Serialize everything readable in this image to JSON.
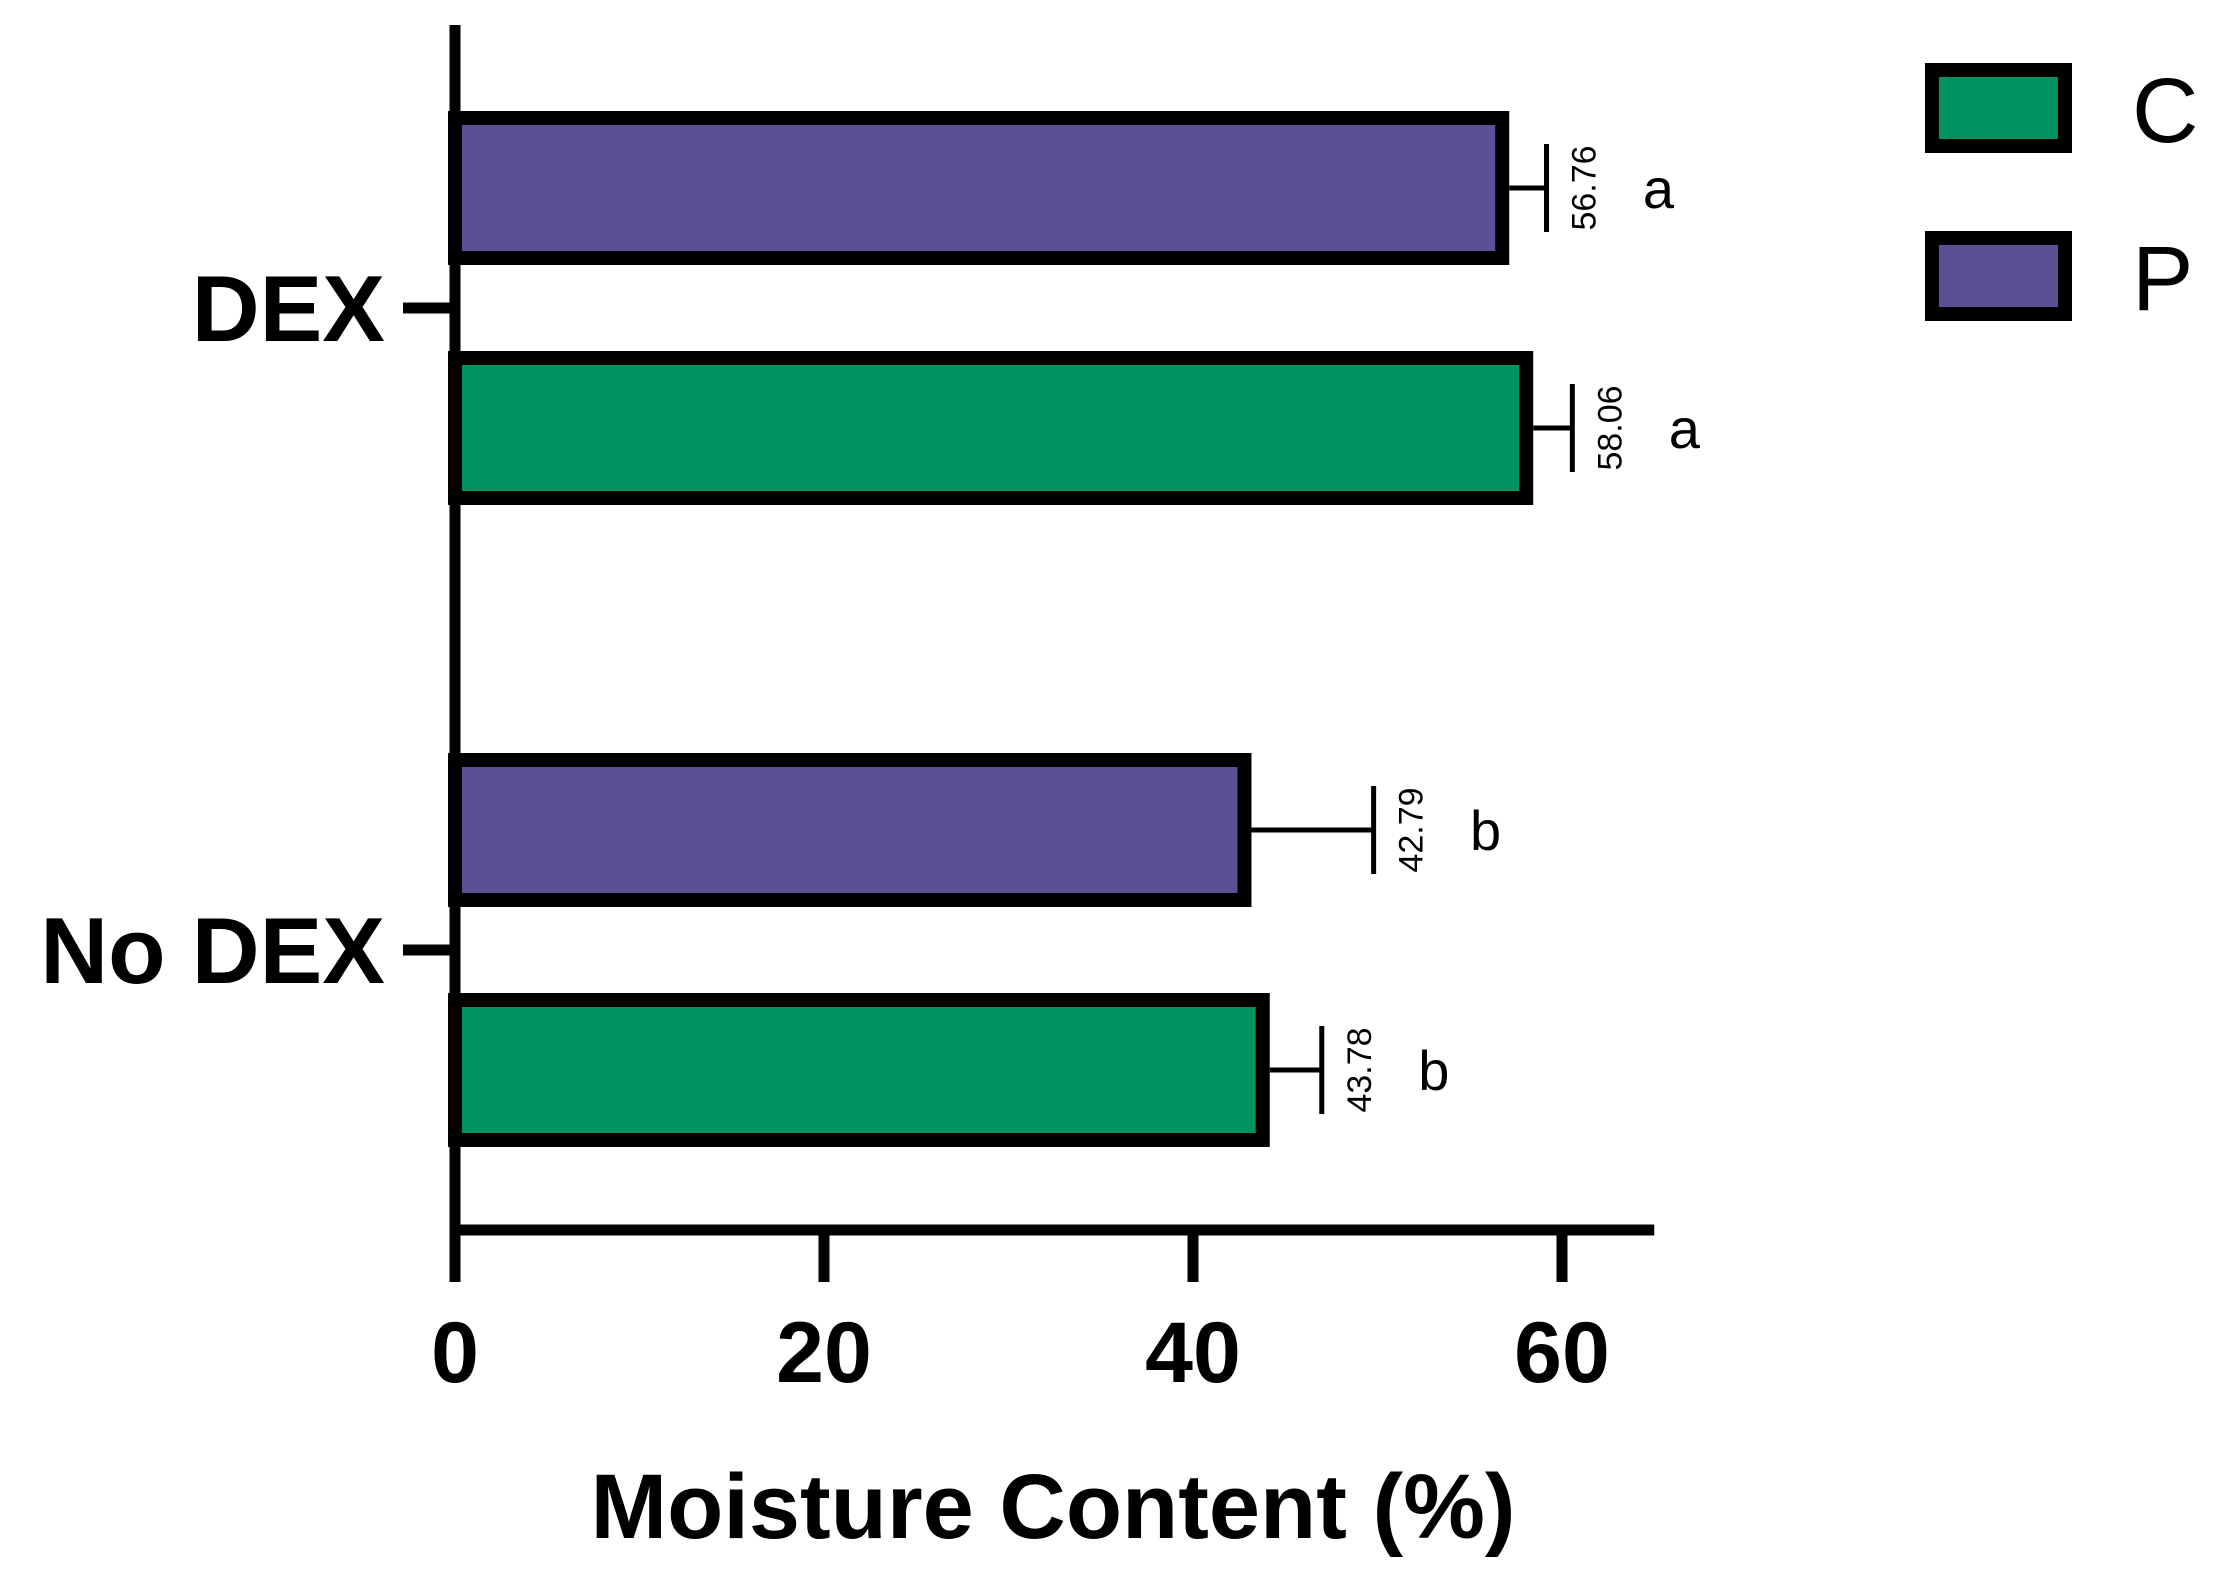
{
  "chart_data": {
    "type": "bar",
    "orientation": "horizontal",
    "categories": [
      "DEX",
      "No DEX"
    ],
    "series": [
      {
        "name": "C",
        "color": "#009262",
        "values": [
          58.06,
          43.78
        ],
        "error": [
          2.5,
          3.2
        ],
        "significance": [
          "a",
          "b"
        ]
      },
      {
        "name": "P",
        "color": "#5a5095",
        "values": [
          56.76,
          42.79
        ],
        "error": [
          2.4,
          7.0
        ],
        "significance": [
          "a",
          "b"
        ]
      }
    ],
    "xlabel": "Moisture Content (%)",
    "ylabel": "",
    "xlim": [
      0,
      65
    ],
    "xticks": [
      0,
      20,
      40,
      60
    ],
    "grid": false,
    "legend": {
      "position": "top-right",
      "entries": [
        "C",
        "P"
      ]
    }
  }
}
